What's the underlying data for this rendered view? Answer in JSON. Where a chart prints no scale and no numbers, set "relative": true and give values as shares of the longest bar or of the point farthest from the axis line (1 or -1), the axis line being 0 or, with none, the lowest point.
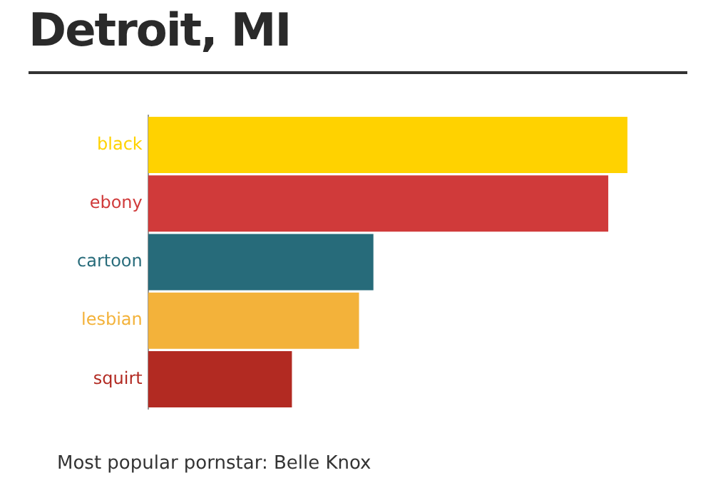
{
  "chart_data": {
    "type": "bar",
    "title": "Detroit, MI",
    "orientation": "horizontal",
    "relative": true,
    "categories": [
      "black",
      "ebony",
      "cartoon",
      "lesbian",
      "squirt"
    ],
    "values": [
      1,
      0.96,
      0.47,
      0.44,
      0.3
    ],
    "colors": [
      "#ffd200",
      "#d03a3a",
      "#276b7a",
      "#f3b23a",
      "#b22a22"
    ],
    "legend": false,
    "annotations": [
      "Most popular pornstar: Belle Knox"
    ]
  }
}
